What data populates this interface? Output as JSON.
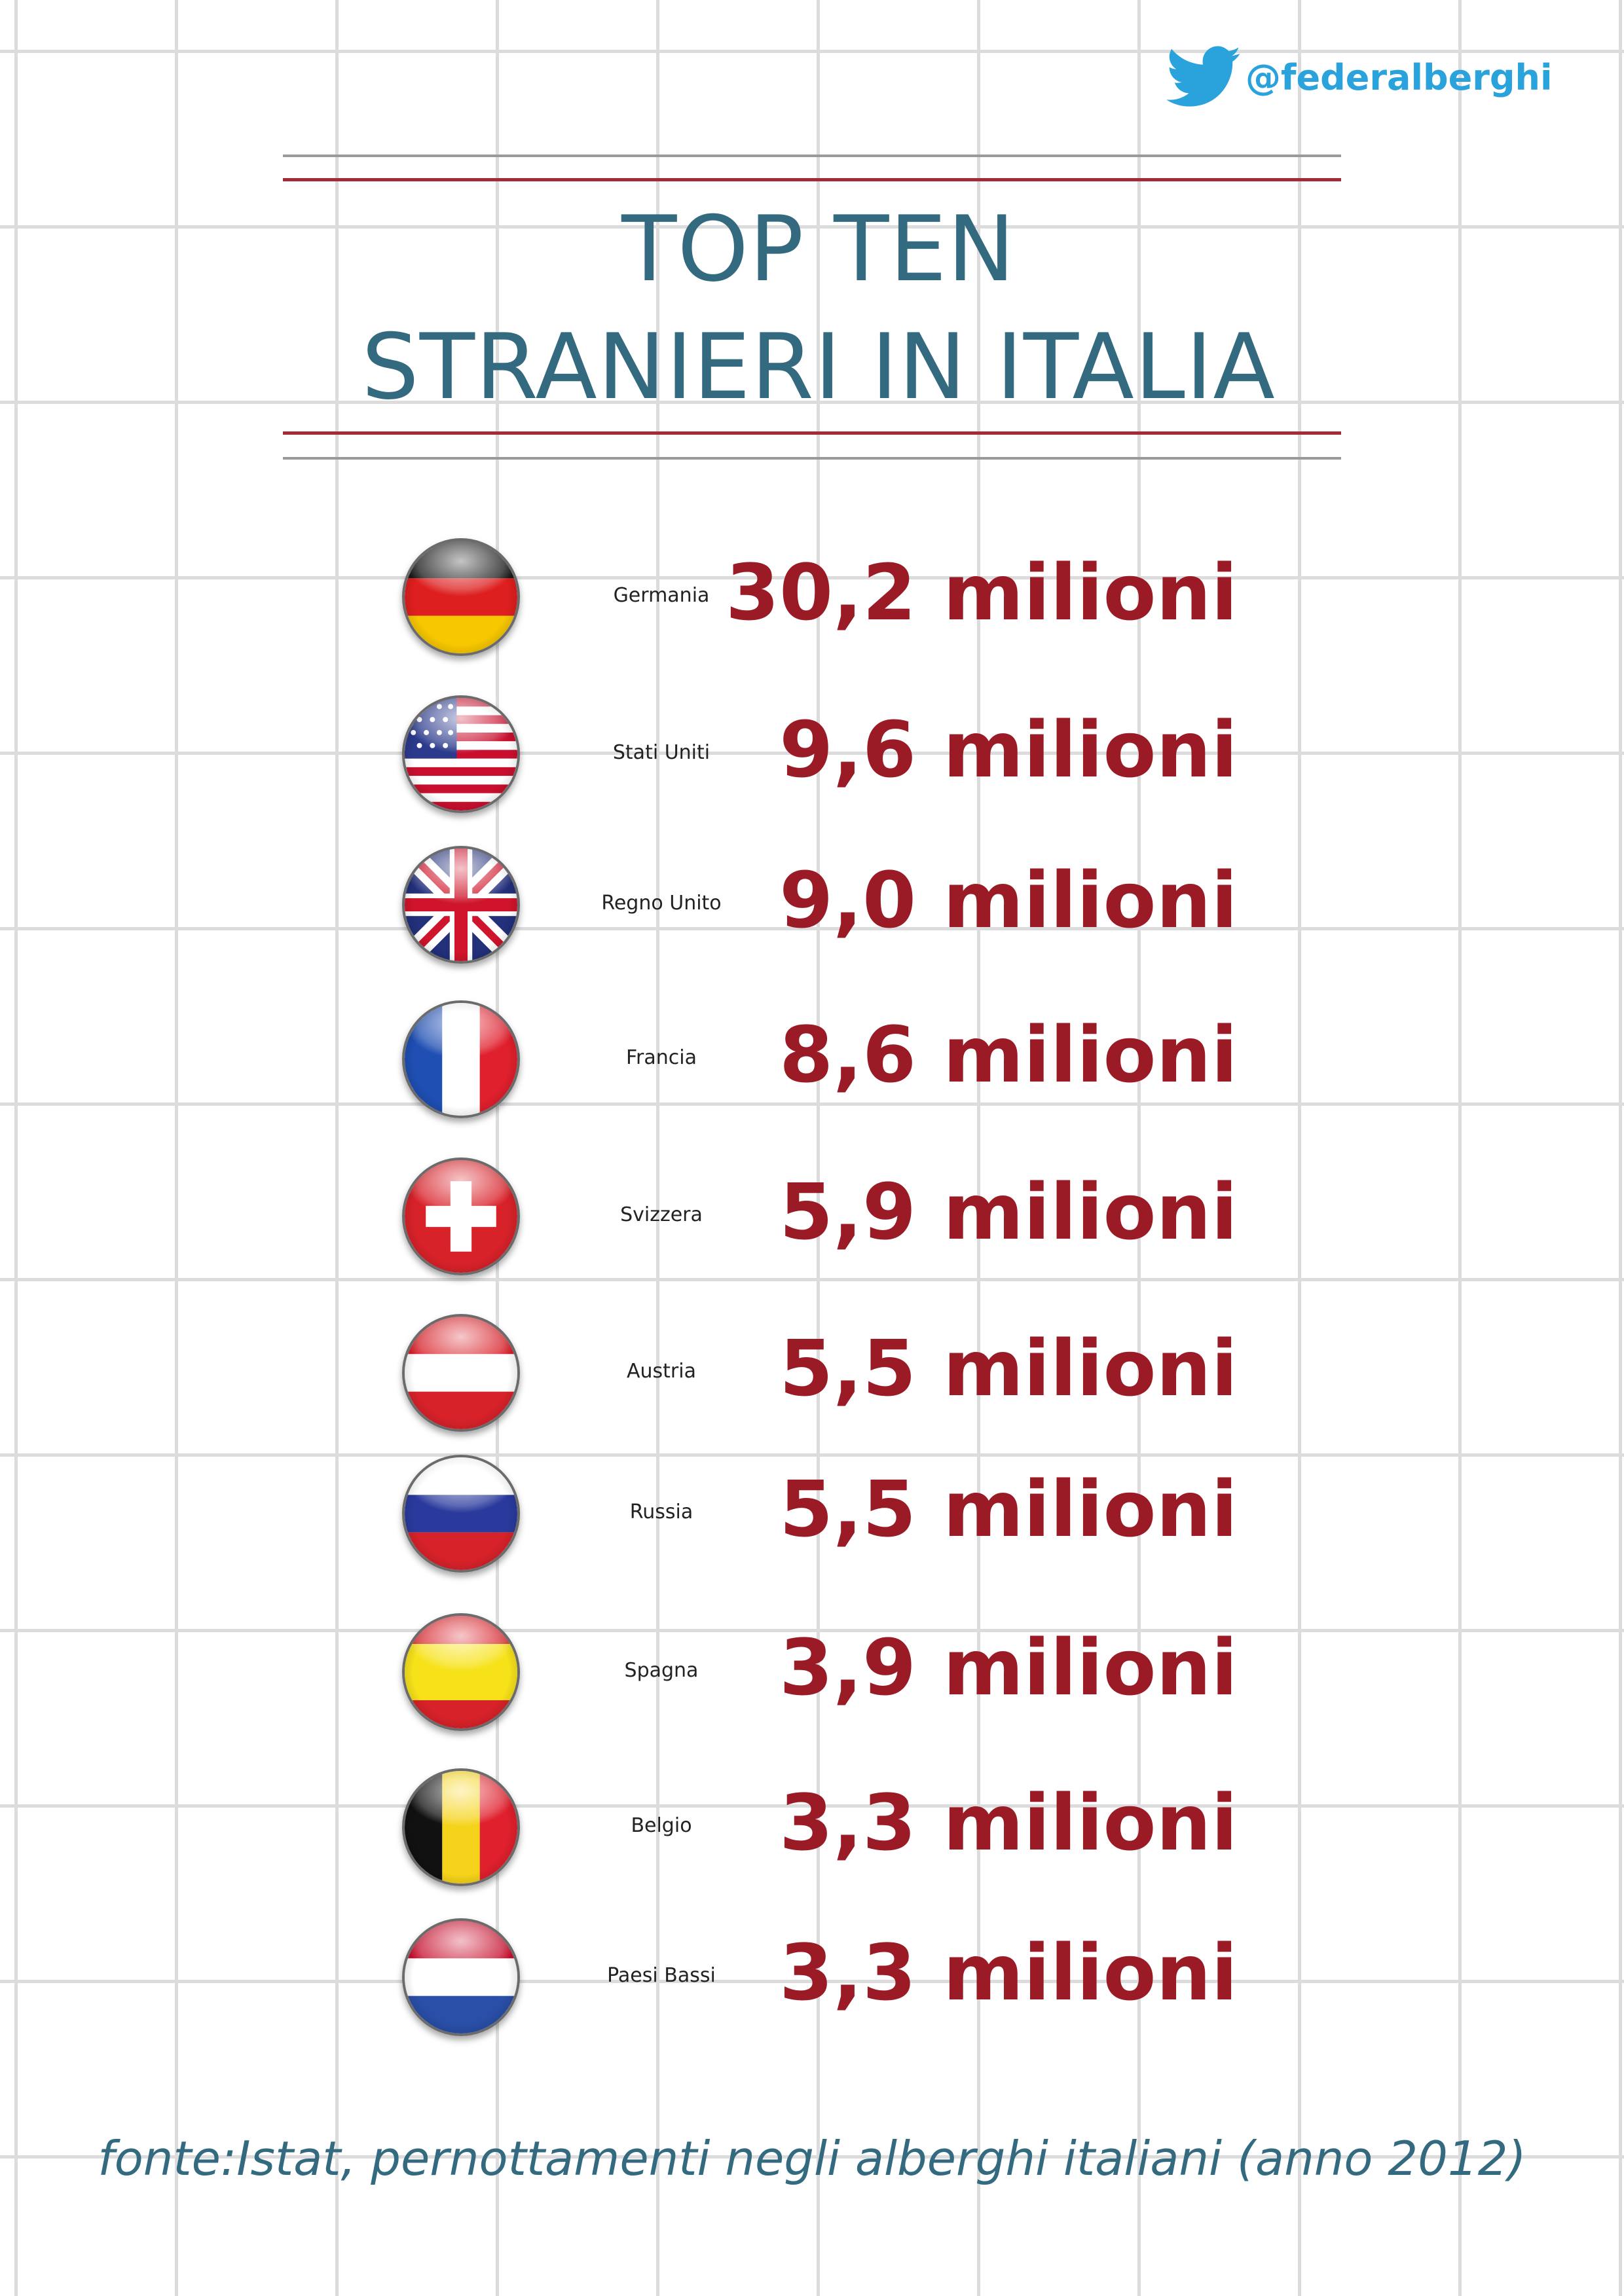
{
  "header": {
    "twitter_handle": "@federalberghi",
    "title_line1": "TOP TEN",
    "title_line2": "STRANIERI IN ITALIA"
  },
  "rows": [
    {
      "country": "Germania",
      "value": "30,2 milioni",
      "flag_icon": "germany-flag-icon"
    },
    {
      "country": "Stati Uniti",
      "value": "9,6 milioni",
      "flag_icon": "usa-flag-icon"
    },
    {
      "country": "Regno Unito",
      "value": "9,0 milioni",
      "flag_icon": "uk-flag-icon"
    },
    {
      "country": "Francia",
      "value": "8,6 milioni",
      "flag_icon": "france-flag-icon"
    },
    {
      "country": "Svizzera",
      "value": "5,9 milioni",
      "flag_icon": "switzerland-flag-icon"
    },
    {
      "country": "Austria",
      "value": "5,5 milioni",
      "flag_icon": "austria-flag-icon"
    },
    {
      "country": "Russia",
      "value": "5,5 milioni",
      "flag_icon": "russia-flag-icon"
    },
    {
      "country": "Spagna",
      "value": "3,9 milioni",
      "flag_icon": "spain-flag-icon"
    },
    {
      "country": "Belgio",
      "value": "3,3 milioni",
      "flag_icon": "belgium-flag-icon"
    },
    {
      "country": "Paesi Bassi",
      "value": "3,3 milioni",
      "flag_icon": "netherlands-flag-icon"
    }
  ],
  "footer": {
    "source": "fonte:Istat, pernottamenti negli alberghi italiani (anno 2012)"
  },
  "colors": {
    "title": "#336a80",
    "value": "#9a1b25",
    "twitter": "#2aa3dc",
    "rule_red": "#a22b35"
  }
}
